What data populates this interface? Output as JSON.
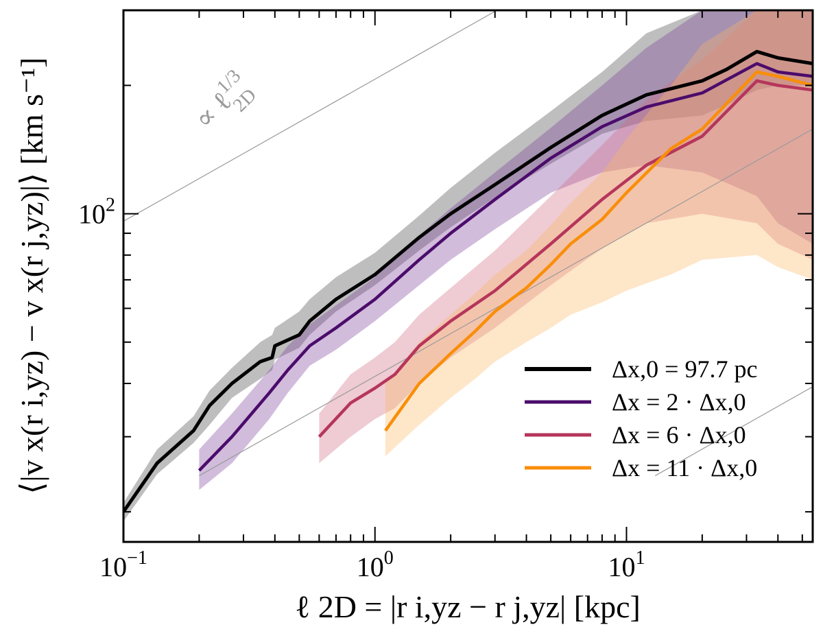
{
  "chart_data": {
    "type": "line",
    "title": "",
    "xscale": "log",
    "yscale": "log",
    "xlim": [
      0.1,
      55
    ],
    "ylim": [
      17,
      300
    ],
    "xlabel": "ℓ 2D = |r i,yz − r j,yz| [kpc]",
    "ylabel": "⟨|v x(r i,yz) − v x(r j,yz)|⟩ [km s⁻¹]",
    "x_ticks": [
      {
        "value": 0.1,
        "base": "10",
        "exp": "−1"
      },
      {
        "value": 1,
        "base": "10",
        "exp": "0"
      },
      {
        "value": 10,
        "base": "10",
        "exp": "1"
      }
    ],
    "y_ticks": [
      {
        "value": 100,
        "base": "10",
        "exp": "2"
      }
    ],
    "guide": {
      "label_prefix": "∝ ℓ",
      "label_exp": "1/3",
      "label_sub": "2D",
      "slope": 0.3333,
      "anchors": [
        [
          0.1,
          96
        ],
        [
          0.2,
          24.3
        ],
        [
          13.0,
          24.3
        ]
      ],
      "color": "#9a9a9a"
    },
    "series": [
      {
        "name": "Δx,0 = 97.7 pc",
        "color": "#000000",
        "band_color": "#9b9b9b",
        "x": [
          0.1,
          0.136,
          0.19,
          0.22,
          0.27,
          0.35,
          0.39,
          0.4,
          0.5,
          0.55,
          0.7,
          1.0,
          1.5,
          2,
          3,
          5,
          8,
          12,
          20,
          25,
          33,
          40,
          55
        ],
        "y": [
          20,
          26,
          31,
          35.5,
          40,
          45,
          46,
          49,
          52,
          56,
          63,
          72,
          88,
          100,
          117,
          143,
          170,
          190,
          205,
          218,
          240,
          232,
          225
        ],
        "lo": [
          19,
          24.5,
          29,
          32,
          37,
          41,
          43,
          45.5,
          48.5,
          52,
          59,
          68,
          82,
          93,
          109,
          131,
          154,
          165,
          170,
          180,
          195,
          200,
          200
        ],
        "hi": [
          21,
          28,
          33.5,
          38.5,
          43.5,
          50,
          52,
          54,
          59,
          63,
          71,
          81,
          99,
          115,
          139,
          174,
          215,
          265,
          300,
          300,
          300,
          300,
          300
        ]
      },
      {
        "name": "Δx = 2 · Δx,0",
        "color": "#4b0c6b",
        "band_color": "#7a3f9b",
        "x": [
          0.2,
          0.27,
          0.38,
          0.45,
          0.55,
          0.7,
          1.0,
          1.5,
          2,
          3,
          5,
          8,
          12,
          20,
          33,
          40,
          55
        ],
        "y": [
          25,
          30,
          38,
          43,
          49,
          54,
          63,
          78,
          90,
          108,
          135,
          160,
          178,
          192,
          225,
          215,
          210
        ],
        "lo": [
          22.5,
          26,
          33,
          38,
          44,
          48,
          56,
          68,
          78,
          92,
          112,
          125,
          130,
          125,
          110,
          95,
          85
        ],
        "hi": [
          28,
          34,
          43,
          49,
          55,
          61,
          71,
          89,
          103,
          125,
          159,
          200,
          245,
          300,
          300,
          300,
          300
        ]
      },
      {
        "name": "Δx = 6 · Δx,0",
        "color": "#b5365b",
        "band_color": "#d06a80",
        "x": [
          0.6,
          0.8,
          1.0,
          1.2,
          1.5,
          2,
          3,
          5,
          8,
          12,
          20,
          33,
          40,
          55
        ],
        "y": [
          30,
          36,
          39,
          42,
          49,
          56,
          66,
          85,
          108,
          130,
          152,
          205,
          200,
          195
        ],
        "lo": [
          26,
          30,
          33,
          35,
          40,
          46,
          54,
          68,
          83,
          95,
          100,
          95,
          85,
          78
        ],
        "hi": [
          34,
          42,
          46,
          50,
          58,
          67,
          82,
          110,
          145,
          185,
          230,
          300,
          300,
          300
        ]
      },
      {
        "name": "Δx = 11 · Δx,0",
        "color": "#f98e09",
        "band_color": "#fbb664",
        "x": [
          1.1,
          1.5,
          2,
          2.5,
          3,
          4,
          5,
          6,
          8,
          10,
          15,
          20,
          33,
          40,
          55
        ],
        "y": [
          31,
          40,
          47,
          53,
          59,
          67,
          76,
          85,
          97,
          112,
          142,
          158,
          215,
          210,
          200
        ],
        "lo": [
          27,
          32,
          37,
          41,
          45,
          50,
          54,
          58,
          62,
          66,
          72,
          78,
          80,
          75,
          70
        ],
        "hi": [
          40,
          50,
          58,
          65,
          72,
          82,
          94,
          106,
          125,
          150,
          200,
          250,
          300,
          300,
          300
        ]
      }
    ],
    "legend_position": "lower-right"
  }
}
